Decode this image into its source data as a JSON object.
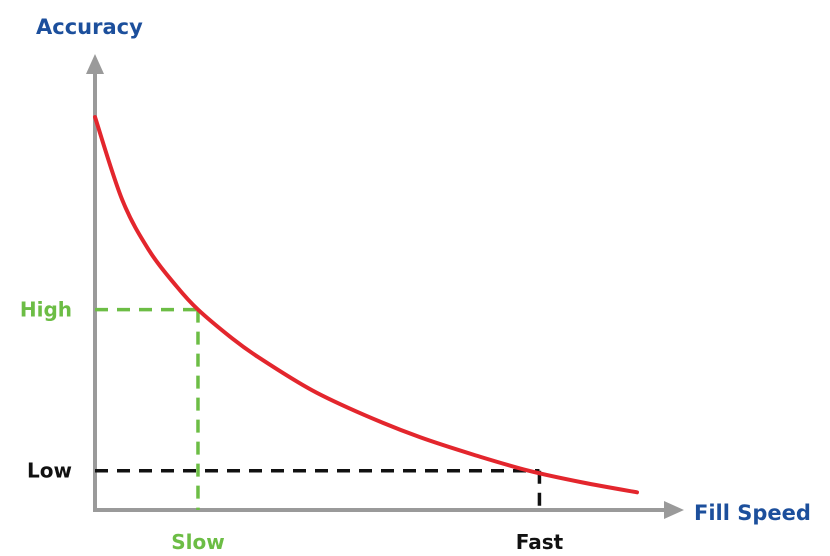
{
  "chart_data": {
    "type": "line",
    "title": "",
    "xlabel": "Fill Speed",
    "ylabel": "Accuracy",
    "grid": false,
    "legend": "none",
    "xlim": [
      0,
      1
    ],
    "ylim": [
      0,
      1
    ],
    "series": [
      {
        "color": "#e3262d",
        "points": [
          [
            0.0,
            1.0
          ],
          [
            0.05,
            0.79
          ],
          [
            0.1,
            0.66
          ],
          [
            0.15,
            0.57
          ],
          [
            0.19,
            0.51
          ],
          [
            0.25,
            0.44
          ],
          [
            0.3,
            0.39
          ],
          [
            0.4,
            0.305
          ],
          [
            0.5,
            0.24
          ],
          [
            0.6,
            0.185
          ],
          [
            0.7,
            0.14
          ],
          [
            0.8,
            0.1
          ],
          [
            0.9,
            0.07
          ],
          [
            1.0,
            0.045
          ]
        ]
      }
    ],
    "markers": [
      {
        "x_label": "Slow",
        "y_label": "High",
        "x": 0.19,
        "y": 0.51,
        "color": "#6cbd45"
      },
      {
        "x_label": "Fast",
        "y_label": "Low",
        "x": 0.82,
        "y": 0.1,
        "color": "#111111"
      }
    ],
    "colors": {
      "axis": "#9a9a9a",
      "axis_label": "#1c4f9c",
      "curve": "#e3262d"
    }
  }
}
